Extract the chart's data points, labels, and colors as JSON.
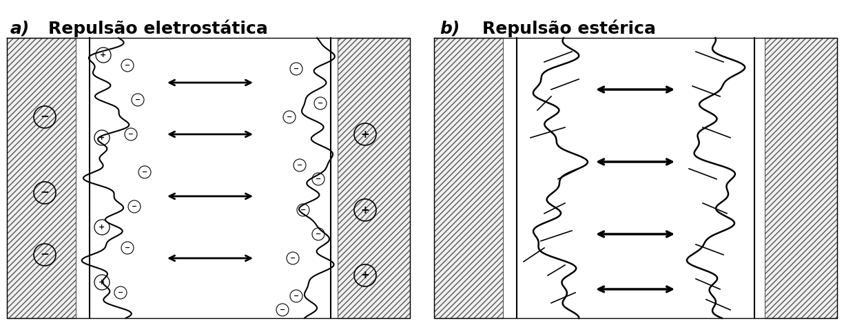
{
  "title_a": "Repulsão eletrostática",
  "title_b": "Repulsão estérica",
  "label_a": "a)",
  "label_b": "b)",
  "bg_color": "#ffffff",
  "fig_width": 12.25,
  "fig_height": 4.72,
  "dpi": 100
}
